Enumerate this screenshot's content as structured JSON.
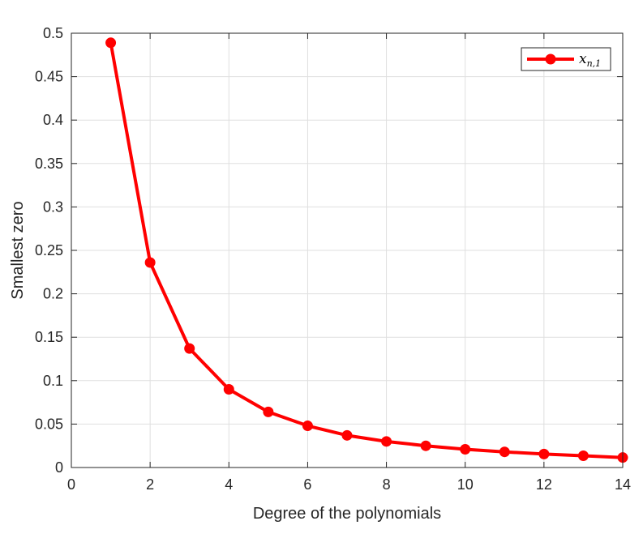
{
  "chart_data": {
    "type": "line",
    "title": "",
    "xlabel": "Degree of the polynomials",
    "ylabel": "Smallest zero",
    "xlim": [
      0,
      14
    ],
    "ylim": [
      0,
      0.5
    ],
    "xticks": [
      0,
      2,
      4,
      6,
      8,
      10,
      12,
      14
    ],
    "xtick_labels": [
      "0",
      "2",
      "4",
      "6",
      "8",
      "10",
      "12",
      "14"
    ],
    "yticks": [
      0,
      0.05,
      0.1,
      0.15,
      0.2,
      0.25,
      0.3,
      0.35,
      0.4,
      0.45,
      0.5
    ],
    "ytick_labels": [
      "0",
      "0.05",
      "0.1",
      "0.15",
      "0.2",
      "0.25",
      "0.3",
      "0.35",
      "0.4",
      "0.45",
      "0.5"
    ],
    "grid": true,
    "legend_position": "top-right",
    "series": [
      {
        "name_base": "x",
        "name_sub": "n,1",
        "color": "#ff0000",
        "marker": "circle",
        "x": [
          1,
          2,
          3,
          4,
          5,
          6,
          7,
          8,
          9,
          10,
          11,
          12,
          13,
          14
        ],
        "y": [
          0.489,
          0.236,
          0.137,
          0.09,
          0.064,
          0.048,
          0.037,
          0.03,
          0.025,
          0.021,
          0.018,
          0.0155,
          0.0135,
          0.0115
        ]
      }
    ]
  }
}
